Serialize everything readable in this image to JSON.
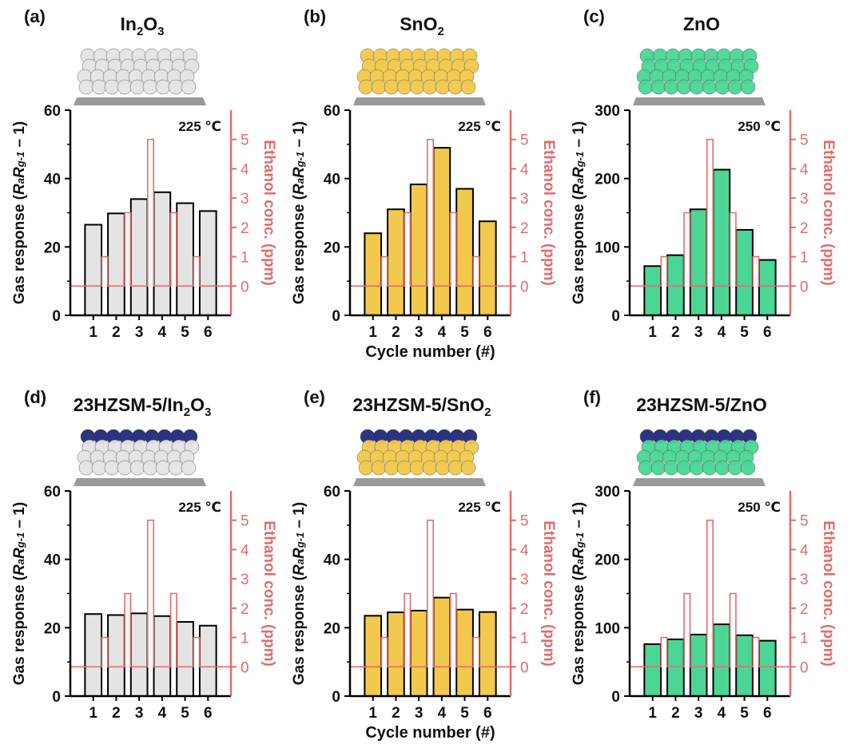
{
  "figure": {
    "colors": {
      "gray": "#e4e4e4",
      "yellow": "#f2c94c",
      "green": "#4bd696",
      "blue": "#1f2a7a",
      "red": "#e36b6b",
      "axis": "#111111"
    },
    "shared_xlabel": "Cycle number (#)",
    "shared_ylabel": "Gas response (RaRg-1 – 1)",
    "shared_ylabel_right": "Ethanol conc. (ppm)"
  },
  "chart_data": [
    {
      "id": "a",
      "panel_label": "(a)",
      "title_parts": [
        [
          "In",
          ""
        ],
        [
          "2",
          "sub"
        ],
        [
          "O",
          ""
        ],
        [
          "3",
          "sub"
        ]
      ],
      "type": "bar",
      "categories": [
        "1",
        "2",
        "3",
        "4",
        "5",
        "6"
      ],
      "values": [
        26.5,
        29.8,
        34,
        36,
        32.8,
        30.5
      ],
      "ylim": [
        0,
        60
      ],
      "yticks": [
        0,
        20,
        40,
        60
      ],
      "y2lim": [
        -1,
        6
      ],
      "y2ticks": [
        0,
        1,
        2,
        3,
        4,
        5
      ],
      "ethanol_ppm": [
        1,
        2.5,
        5,
        2.5,
        1
      ],
      "temperature": "225 ℃",
      "bar_color": "gray",
      "hzsm": false,
      "ylabel": "Gas response",
      "y2label": "Ethanol conc. (ppm)",
      "xlabel": ""
    },
    {
      "id": "b",
      "panel_label": "(b)",
      "title_parts": [
        [
          "SnO",
          ""
        ],
        [
          "2",
          "sub"
        ]
      ],
      "type": "bar",
      "categories": [
        "1",
        "2",
        "3",
        "4",
        "5",
        "6"
      ],
      "values": [
        24,
        31,
        38.3,
        49,
        37,
        27.5
      ],
      "ylim": [
        0,
        60
      ],
      "yticks": [
        0,
        20,
        40,
        60
      ],
      "y2lim": [
        -1,
        6
      ],
      "y2ticks": [
        0,
        1,
        2,
        3,
        4,
        5
      ],
      "ethanol_ppm": [
        1,
        2.5,
        5,
        2.5,
        1
      ],
      "temperature": "225 ℃",
      "bar_color": "yellow",
      "hzsm": false,
      "ylabel": "Gas response",
      "y2label": "Ethanol conc. (ppm)",
      "xlabel": "Cycle number (#)"
    },
    {
      "id": "c",
      "panel_label": "(c)",
      "title_parts": [
        [
          "ZnO",
          ""
        ]
      ],
      "type": "bar",
      "categories": [
        "1",
        "2",
        "3",
        "4",
        "5",
        "6"
      ],
      "values": [
        72,
        88,
        155,
        213,
        125,
        81
      ],
      "ylim": [
        0,
        300
      ],
      "yticks": [
        0,
        100,
        200,
        300
      ],
      "y2lim": [
        -1,
        6
      ],
      "y2ticks": [
        0,
        1,
        2,
        3,
        4,
        5
      ],
      "ethanol_ppm": [
        1,
        2.5,
        5,
        2.5,
        1
      ],
      "temperature": "250 ℃",
      "bar_color": "green",
      "hzsm": false,
      "ylabel": "Gas response",
      "y2label": "Ethanol conc. (ppm)",
      "xlabel": ""
    },
    {
      "id": "d",
      "panel_label": "(d)",
      "title_parts": [
        [
          "23HZSM-5/In",
          ""
        ],
        [
          "2",
          "sub"
        ],
        [
          "O",
          ""
        ],
        [
          "3",
          "sub"
        ]
      ],
      "type": "bar",
      "categories": [
        "1",
        "2",
        "3",
        "4",
        "5",
        "6"
      ],
      "values": [
        24,
        23.7,
        24.2,
        23.4,
        21.7,
        20.6
      ],
      "ylim": [
        0,
        60
      ],
      "yticks": [
        0,
        20,
        40,
        60
      ],
      "y2lim": [
        -1,
        6
      ],
      "y2ticks": [
        0,
        1,
        2,
        3,
        4,
        5
      ],
      "ethanol_ppm": [
        1,
        2.5,
        5,
        2.5,
        1
      ],
      "temperature": "225 ℃",
      "bar_color": "gray",
      "hzsm": true,
      "ylabel": "Gas response",
      "y2label": "Ethanol conc. (ppm)",
      "xlabel": ""
    },
    {
      "id": "e",
      "panel_label": "(e)",
      "title_parts": [
        [
          "23HZSM-5/SnO",
          ""
        ],
        [
          "2",
          "sub"
        ]
      ],
      "type": "bar",
      "categories": [
        "1",
        "2",
        "3",
        "4",
        "5",
        "6"
      ],
      "values": [
        23.5,
        24.5,
        25,
        28.8,
        25.3,
        24.6
      ],
      "ylim": [
        0,
        60
      ],
      "yticks": [
        0,
        20,
        40,
        60
      ],
      "y2lim": [
        -1,
        6
      ],
      "y2ticks": [
        0,
        1,
        2,
        3,
        4,
        5
      ],
      "ethanol_ppm": [
        1,
        2.5,
        5,
        2.5,
        1
      ],
      "temperature": "225 ℃",
      "bar_color": "yellow",
      "hzsm": true,
      "ylabel": "Gas response",
      "y2label": "Ethanol conc. (ppm)",
      "xlabel": "Cycle number (#)"
    },
    {
      "id": "f",
      "panel_label": "(f)",
      "title_parts": [
        [
          "23HZSM-5/ZnO",
          ""
        ]
      ],
      "type": "bar",
      "categories": [
        "1",
        "2",
        "3",
        "4",
        "5",
        "6"
      ],
      "values": [
        76,
        83,
        90,
        105,
        89,
        81
      ],
      "ylim": [
        0,
        300
      ],
      "yticks": [
        0,
        100,
        200,
        300
      ],
      "y2lim": [
        -1,
        6
      ],
      "y2ticks": [
        0,
        1,
        2,
        3,
        4,
        5
      ],
      "ethanol_ppm": [
        1,
        2.5,
        5,
        2.5,
        1
      ],
      "temperature": "250 ℃",
      "bar_color": "green",
      "hzsm": true,
      "ylabel": "Gas response",
      "y2label": "Ethanol conc. (ppm)",
      "xlabel": ""
    }
  ]
}
